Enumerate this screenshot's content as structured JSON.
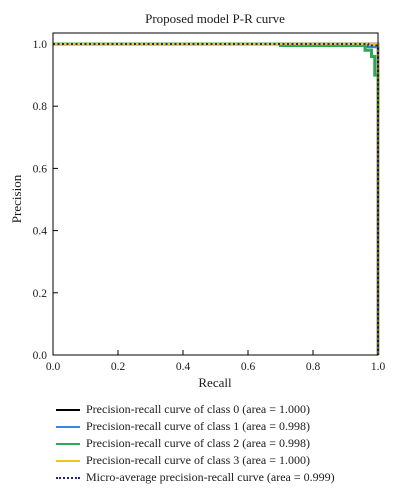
{
  "chart_data": {
    "type": "line",
    "title": "Proposed model P-R curve",
    "xlabel": "Recall",
    "ylabel": "Precision",
    "xlim": [
      0.0,
      1.0
    ],
    "ylim": [
      0.0,
      1.0
    ],
    "xticks": [
      "0.0",
      "0.2",
      "0.4",
      "0.6",
      "0.8",
      "1.0"
    ],
    "yticks": [
      "0.0",
      "0.2",
      "0.4",
      "0.6",
      "0.8",
      "1.0"
    ],
    "grid": false,
    "legend_position": "below",
    "series": [
      {
        "name": "Precision-recall curve of class 0 (area = 1.000)",
        "color": "#000000",
        "style": "solid",
        "x": [
          0.0,
          1.0,
          1.0
        ],
        "y": [
          1.0,
          1.0,
          0.0
        ]
      },
      {
        "name": "Precision-recall curve of class 1 (area = 0.998)",
        "color": "#3a87d9",
        "style": "solid",
        "x": [
          0.0,
          0.7,
          0.7,
          0.96,
          0.96,
          1.0,
          1.0
        ],
        "y": [
          1.0,
          1.0,
          0.995,
          0.995,
          0.99,
          0.99,
          0.0
        ]
      },
      {
        "name": "Precision-recall curve of class 2 (area = 0.998)",
        "color": "#2ea855",
        "style": "solid",
        "x": [
          0.0,
          0.7,
          0.7,
          0.96,
          0.96,
          0.98,
          0.98,
          0.99,
          0.99,
          1.0,
          1.0
        ],
        "y": [
          1.0,
          1.0,
          0.995,
          0.995,
          0.98,
          0.98,
          0.96,
          0.96,
          0.9,
          0.9,
          0.78
        ]
      },
      {
        "name": "Precision-recall curve of class 3 (area = 1.000)",
        "color": "#f0c419",
        "style": "solid",
        "x": [
          0.0,
          1.0,
          1.0
        ],
        "y": [
          1.0,
          1.0,
          0.0
        ]
      },
      {
        "name": "Micro-average precision-recall curve (area = 0.999)",
        "color": "#1f2a78",
        "style": "dotted",
        "x": [
          0.0,
          0.97,
          0.97,
          1.0,
          1.0
        ],
        "y": [
          1.0,
          1.0,
          0.995,
          0.995,
          0.0
        ]
      }
    ]
  }
}
